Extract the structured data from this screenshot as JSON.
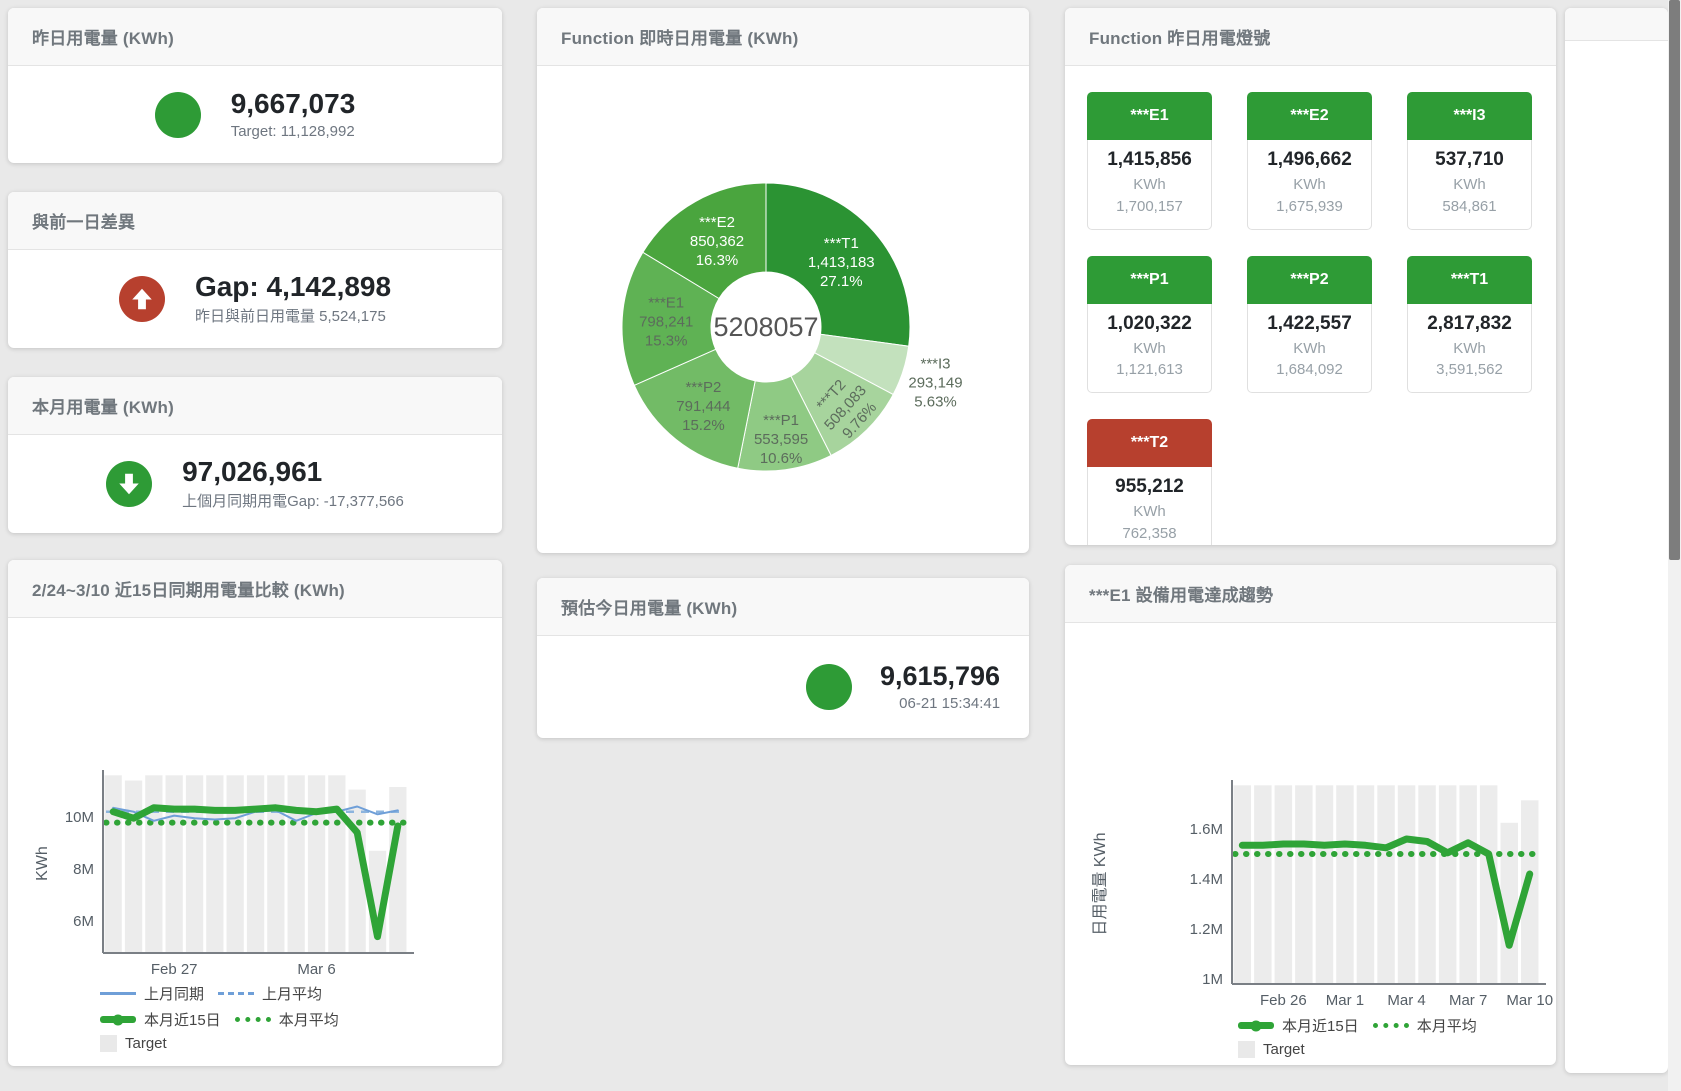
{
  "colors": {
    "green": "#2e9b36",
    "red": "#b7402e",
    "line_green": "#2fa437",
    "line_blue": "#6f9fd8",
    "avg_blue": "#8cb4de",
    "bar_gray": "#ececec"
  },
  "stat_cards": [
    {
      "title": "昨日用電量 (KWh)",
      "value": "9,667,073",
      "subtext": "Target: 11,128,992",
      "icon": "circle",
      "icon_color": "#2e9b36"
    },
    {
      "title": "與前一日差異",
      "value": "Gap: 4,142,898",
      "subtext": "昨日與前日用電量 5,524,175",
      "icon": "arrow-up",
      "icon_color": "#b7402e"
    },
    {
      "title": "本月用電量 (KWh)",
      "value": "97,026,961",
      "subtext": "上個月同期用電Gap: -17,377,566",
      "icon": "arrow-down",
      "icon_color": "#2e9b36"
    }
  ],
  "estimate_card": {
    "title": "預估今日用電量 (KWh)",
    "value": "9,615,796",
    "subtext": "06-21 15:34:41",
    "icon": "circle",
    "icon_color": "#2e9b36"
  },
  "donut_card": {
    "title": "Function 即時日用電量 (KWh)"
  },
  "tiles_card": {
    "title": "Function 昨日用電燈號",
    "unit_label": "KWh",
    "tiles": [
      {
        "label": "***E1",
        "value": "1,415,856",
        "target": "1,700,157",
        "color": "#2e9b36"
      },
      {
        "label": "***E2",
        "value": "1,496,662",
        "target": "1,675,939",
        "color": "#2e9b36"
      },
      {
        "label": "***I3",
        "value": "537,710",
        "target": "584,861",
        "color": "#2e9b36"
      },
      {
        "label": "***P1",
        "value": "1,020,322",
        "target": "1,121,613",
        "color": "#2e9b36"
      },
      {
        "label": "***P2",
        "value": "1,422,557",
        "target": "1,684,092",
        "color": "#2e9b36"
      },
      {
        "label": "***T1",
        "value": "2,817,832",
        "target": "3,591,562",
        "color": "#2e9b36"
      },
      {
        "label": "***T2",
        "value": "955,212",
        "target": "762,358",
        "color": "#b7402e"
      }
    ]
  },
  "compare_card": {
    "title": "2/24~3/10 近15日同期用電量比較 (KWh)",
    "legend": [
      "上月同期",
      "上月平均",
      "本月近15日",
      "本月平均",
      "Target"
    ]
  },
  "trend_card": {
    "title": "***E1 設備用電達成趨勢",
    "legend": [
      "本月近15日",
      "本月平均",
      "Target"
    ]
  },
  "chart_data": [
    {
      "type": "pie",
      "title": "Function 即時日用電量 (KWh)",
      "center_label": "5208057",
      "legend_position": "none",
      "slices": [
        {
          "name": "***T1",
          "value": 1413183,
          "value_label": "1,413,183",
          "pct": 27.1,
          "pct_label": "27.1%",
          "color": "#2b9333",
          "text_color": "#ffffff",
          "label_pos": "inside",
          "label_r": 100,
          "label_rotate": 0
        },
        {
          "name": "***I3",
          "value": 293149,
          "value_label": "293,149",
          "pct": 5.63,
          "pct_label": "5.63%",
          "color": "#c3e1bd",
          "text_color": "#5c6c5c",
          "label_pos": "outside",
          "label_r": 178,
          "label_rotate": 0
        },
        {
          "name": "***T2",
          "value": 508083,
          "value_label": "508,083",
          "pct": 9.76,
          "pct_label": "9.76%",
          "color": "#a7d49d",
          "text_color": "#5c6c5c",
          "label_pos": "inside",
          "label_r": 112,
          "label_rotate": -48
        },
        {
          "name": "***P1",
          "value": 553595,
          "value_label": "553,595",
          "pct": 10.6,
          "pct_label": "10.6%",
          "color": "#8fca84",
          "text_color": "#5c6c5c",
          "label_pos": "inside",
          "label_r": 112,
          "label_rotate": 0
        },
        {
          "name": "***P2",
          "value": 791444,
          "value_label": "791,444",
          "pct": 15.2,
          "pct_label": "15.2%",
          "color": "#72bb66",
          "text_color": "#5c6c5c",
          "label_pos": "inside",
          "label_r": 100,
          "label_rotate": 0
        },
        {
          "name": "***E1",
          "value": 798241,
          "value_label": "798,241",
          "pct": 15.3,
          "pct_label": "15.3%",
          "color": "#5fb254",
          "text_color": "#5c6c5c",
          "label_pos": "inside",
          "label_r": 100,
          "label_rotate": 0
        },
        {
          "name": "***E2",
          "value": 850362,
          "value_label": "850,362",
          "pct": 16.3,
          "pct_label": "16.3%",
          "color": "#4aa53e",
          "text_color": "#ffffff",
          "label_pos": "inside",
          "label_r": 100,
          "label_rotate": 0
        }
      ]
    },
    {
      "type": "line",
      "title": "2/24~3/10 近15日同期用電量比較 (KWh)",
      "ylabel": "KWh",
      "unit": "M KWh",
      "ylim": [
        4.77,
        11.65
      ],
      "grid": false,
      "yticks": [
        {
          "v": 6,
          "label": "6M"
        },
        {
          "v": 8,
          "label": "8M"
        },
        {
          "v": 10,
          "label": "10M"
        }
      ],
      "xticks": [
        {
          "i": 3,
          "label": "Feb 27"
        },
        {
          "i": 10,
          "label": "Mar 6"
        }
      ],
      "target_bars": [
        11.6,
        11.4,
        11.6,
        11.6,
        11.6,
        11.6,
        11.6,
        11.6,
        11.6,
        11.6,
        11.6,
        11.6,
        11.05,
        8.7,
        11.15
      ],
      "series": [
        {
          "name": "上月同期",
          "type": "line",
          "color_key": "line_blue",
          "width": 2,
          "values": [
            10.35,
            10.2,
            9.85,
            10.05,
            9.95,
            9.9,
            9.95,
            10.2,
            10.25,
            9.85,
            10.15,
            10.2,
            10.4,
            10.1,
            10.25
          ]
        },
        {
          "name": "上月平均",
          "type": "avg-dashed",
          "color_key": "avg_blue",
          "value": 10.2
        },
        {
          "name": "本月近15日",
          "type": "line",
          "color_key": "line_green",
          "width": 7,
          "values": [
            10.2,
            9.95,
            10.35,
            10.3,
            10.3,
            10.25,
            10.25,
            10.3,
            10.35,
            10.25,
            10.2,
            10.3,
            9.4,
            5.4,
            9.65
          ]
        },
        {
          "name": "本月平均",
          "type": "avg-dotted",
          "color_key": "line_green",
          "value": 9.78
        },
        {
          "name": "Target",
          "type": "bars",
          "color_key": "bar_gray"
        }
      ]
    },
    {
      "type": "line",
      "title": "***E1 設備用電達成趨勢",
      "ylabel": "日用電量 KWh",
      "unit": "M KWh",
      "ylim": [
        0.98,
        1.78
      ],
      "grid": false,
      "yticks": [
        {
          "v": 1,
          "label": "1M"
        },
        {
          "v": 1.2,
          "label": "1.2M"
        },
        {
          "v": 1.4,
          "label": "1.4M"
        },
        {
          "v": 1.6,
          "label": "1.6M"
        }
      ],
      "xticks": [
        {
          "i": 2,
          "label": "Feb 26"
        },
        {
          "i": 5,
          "label": "Mar 1"
        },
        {
          "i": 8,
          "label": "Mar 4"
        },
        {
          "i": 11,
          "label": "Mar 7"
        },
        {
          "i": 14,
          "label": "Mar 10"
        }
      ],
      "target_bars": [
        1.775,
        1.775,
        1.775,
        1.775,
        1.775,
        1.775,
        1.775,
        1.775,
        1.775,
        1.775,
        1.775,
        1.775,
        1.775,
        1.625,
        1.715
      ],
      "series": [
        {
          "name": "本月近15日",
          "type": "line",
          "color_key": "line_green",
          "width": 7,
          "values": [
            1.535,
            1.535,
            1.54,
            1.54,
            1.535,
            1.54,
            1.535,
            1.525,
            1.56,
            1.55,
            1.505,
            1.545,
            1.5,
            1.135,
            1.42
          ]
        },
        {
          "name": "本月平均",
          "type": "avg-dotted",
          "color_key": "line_green",
          "value": 1.5
        },
        {
          "name": "Target",
          "type": "bars",
          "color_key": "bar_gray"
        }
      ]
    }
  ]
}
